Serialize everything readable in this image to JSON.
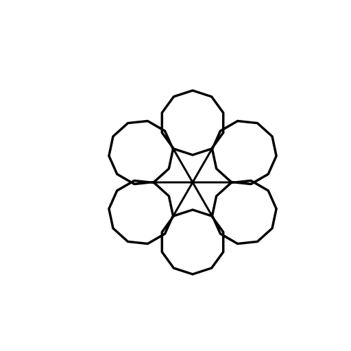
{
  "figure": {
    "background_color": "#ffffff",
    "stroke_color": "#000000",
    "polygon_count": 6,
    "polygon_sides": 10,
    "center_lines": 3
  }
}
